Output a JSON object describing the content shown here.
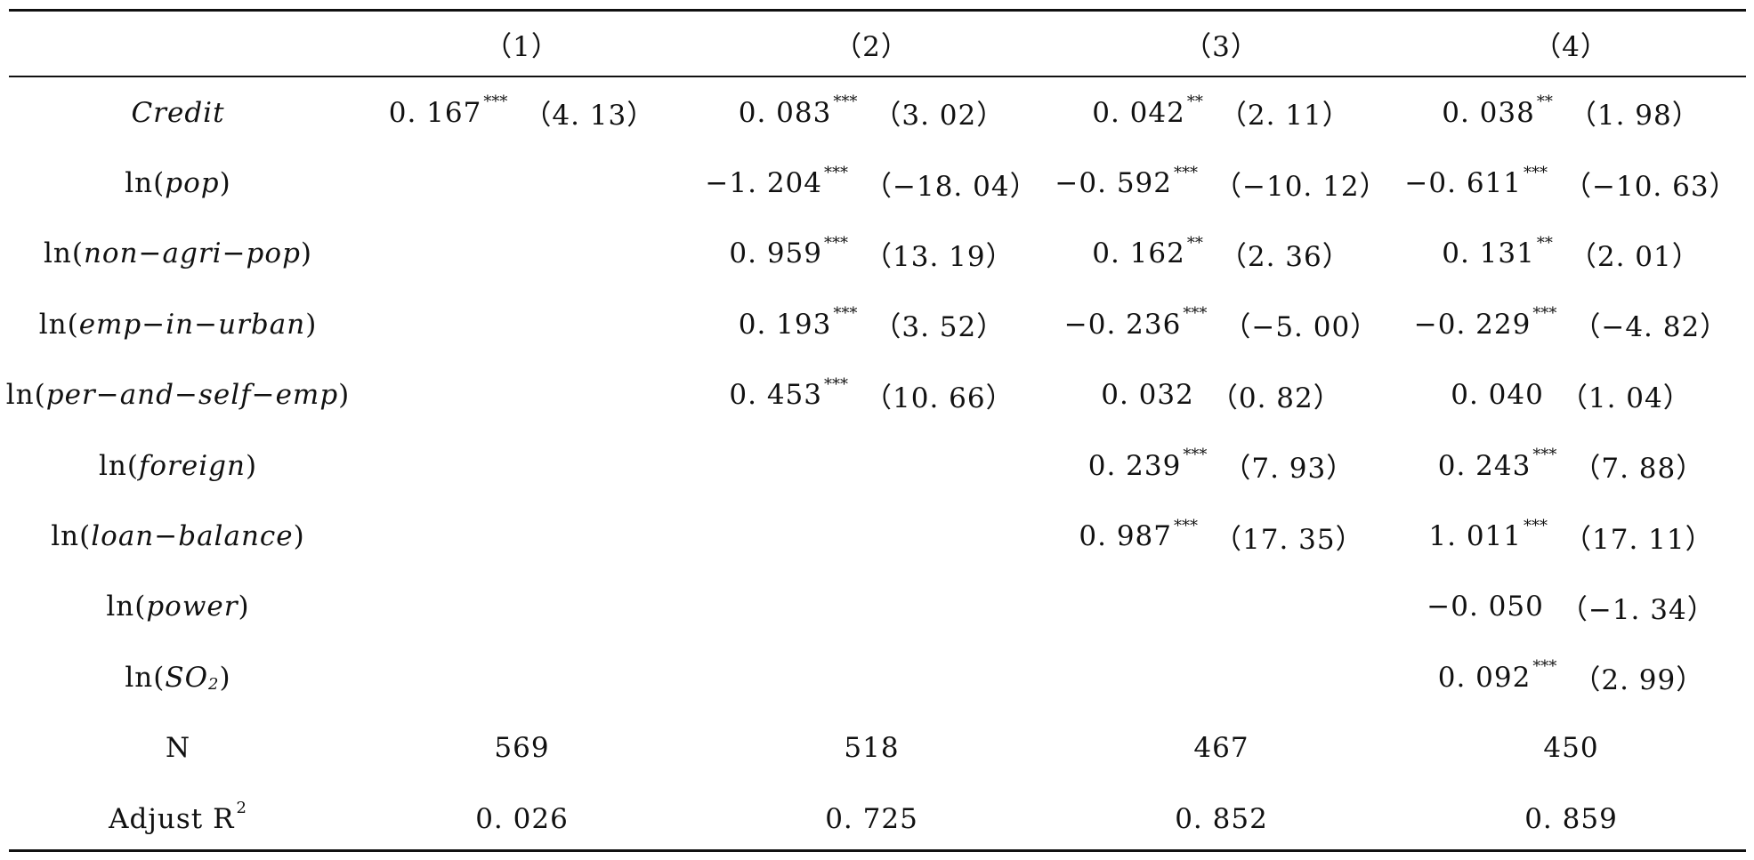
{
  "columns": [
    "（1）",
    "（2）",
    "（3）",
    "（4）"
  ],
  "rows": [
    {
      "label_prefix": "",
      "label_var": "Credit",
      "label_suffix": "",
      "cells": [
        {
          "coef": "0. 167",
          "stars": "***",
          "t": "（4. 13）"
        },
        {
          "coef": "0. 083",
          "stars": "***",
          "t": "（3. 02）"
        },
        {
          "coef": "0. 042",
          "stars": "**",
          "t": "（2. 11）"
        },
        {
          "coef": "0. 038",
          "stars": "**",
          "t": "（1. 98）"
        }
      ]
    },
    {
      "label_prefix": "ln(",
      "label_var": "pop",
      "label_suffix": ")",
      "cells": [
        null,
        {
          "coef": "−1. 204",
          "stars": "***",
          "t": "（−18. 04）"
        },
        {
          "coef": "−0. 592",
          "stars": "***",
          "t": "（−10. 12）"
        },
        {
          "coef": "−0. 611",
          "stars": "***",
          "t": "（−10. 63）"
        }
      ]
    },
    {
      "label_prefix": "ln(",
      "label_var": "non−agri−pop",
      "label_suffix": ")",
      "cells": [
        null,
        {
          "coef": "0. 959",
          "stars": "***",
          "t": "（13. 19）"
        },
        {
          "coef": "0. 162",
          "stars": "**",
          "t": "（2. 36）"
        },
        {
          "coef": "0. 131",
          "stars": "**",
          "t": "（2. 01）"
        }
      ]
    },
    {
      "label_prefix": "ln(",
      "label_var": "emp−in−urban",
      "label_suffix": ")",
      "cells": [
        null,
        {
          "coef": "0. 193",
          "stars": "***",
          "t": "（3. 52）"
        },
        {
          "coef": "−0. 236",
          "stars": "***",
          "t": "（−5. 00）"
        },
        {
          "coef": "−0. 229",
          "stars": "***",
          "t": "（−4. 82）"
        }
      ]
    },
    {
      "label_prefix": "ln(",
      "label_var": "per−and−self−emp",
      "label_suffix": ")",
      "cells": [
        null,
        {
          "coef": "0. 453",
          "stars": "***",
          "t": "（10. 66）"
        },
        {
          "coef": "0. 032",
          "stars": "",
          "t": "（0. 82）"
        },
        {
          "coef": "0. 040",
          "stars": "",
          "t": "（1. 04）"
        }
      ]
    },
    {
      "label_prefix": "ln(",
      "label_var": "foreign",
      "label_suffix": ")",
      "cells": [
        null,
        null,
        {
          "coef": "0. 239",
          "stars": "***",
          "t": "（7. 93）"
        },
        {
          "coef": "0. 243",
          "stars": "***",
          "t": "（7. 88）"
        }
      ]
    },
    {
      "label_prefix": "ln(",
      "label_var": "loan−balance",
      "label_suffix": ")",
      "cells": [
        null,
        null,
        {
          "coef": "0. 987",
          "stars": "***",
          "t": "（17. 35）"
        },
        {
          "coef": "1. 011",
          "stars": "***",
          "t": "（17. 11）"
        }
      ]
    },
    {
      "label_prefix": "ln(",
      "label_var": "power",
      "label_suffix": ")",
      "cells": [
        null,
        null,
        null,
        {
          "coef": "−0. 050",
          "stars": "",
          "t": "（−1. 34）"
        }
      ]
    },
    {
      "label_prefix": "ln(",
      "label_var": "SO",
      "label_sub": "2",
      "label_suffix": ")",
      "cells": [
        null,
        null,
        null,
        {
          "coef": "0. 092",
          "stars": "***",
          "t": "（2. 99）"
        }
      ]
    }
  ],
  "summary": {
    "n_label": "N",
    "n_values": [
      "569",
      "518",
      "467",
      "450"
    ],
    "r2_label": "Adjust R",
    "r2_sup": "2",
    "r2_values": [
      "0. 026",
      "0. 725",
      "0. 852",
      "0. 859"
    ]
  }
}
